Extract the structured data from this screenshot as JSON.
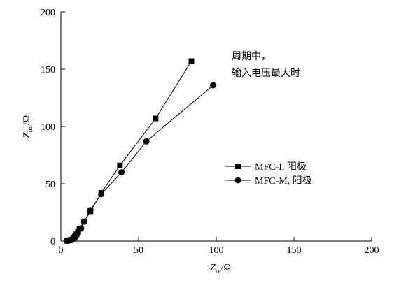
{
  "chart_data": {
    "type": "scatter",
    "xlim": [
      0,
      200
    ],
    "ylim": [
      0,
      200
    ],
    "x_ticks": [
      0,
      50,
      100,
      150,
      200
    ],
    "y_ticks": [
      0,
      50,
      100,
      150,
      200
    ],
    "xlabel": {
      "main": "Z",
      "sub": "re",
      "unit": "/Ω"
    },
    "ylabel": {
      "main": "Z",
      "sub": "im",
      "unit": "/Ω"
    },
    "annotation": [
      "周期中，",
      "输入电压最大时"
    ],
    "legend_position": "right-middle",
    "grid": false,
    "series": [
      {
        "name": "MFC-I, 阳极",
        "marker": "square",
        "color": "#000000",
        "points": [
          [
            4,
            0.3
          ],
          [
            5,
            0.5
          ],
          [
            6,
            0.8
          ],
          [
            7,
            1.3
          ],
          [
            8,
            2
          ],
          [
            8.5,
            3
          ],
          [
            9,
            4
          ],
          [
            10,
            6
          ],
          [
            11,
            8
          ],
          [
            12,
            11
          ],
          [
            15,
            17
          ],
          [
            19,
            26
          ],
          [
            26,
            42
          ],
          [
            38,
            66
          ],
          [
            61,
            107
          ],
          [
            84,
            157
          ]
        ]
      },
      {
        "name": "MFC-M, 阳极",
        "marker": "circle",
        "color": "#000000",
        "points": [
          [
            4,
            0.3
          ],
          [
            5,
            0.5
          ],
          [
            6,
            0.8
          ],
          [
            7,
            1.3
          ],
          [
            8,
            2
          ],
          [
            9,
            3
          ],
          [
            10,
            5
          ],
          [
            11,
            7
          ],
          [
            13,
            11
          ],
          [
            15,
            17
          ],
          [
            19,
            27
          ],
          [
            26,
            41
          ],
          [
            39,
            60
          ],
          [
            55,
            87
          ],
          [
            98,
            136
          ]
        ]
      }
    ]
  }
}
